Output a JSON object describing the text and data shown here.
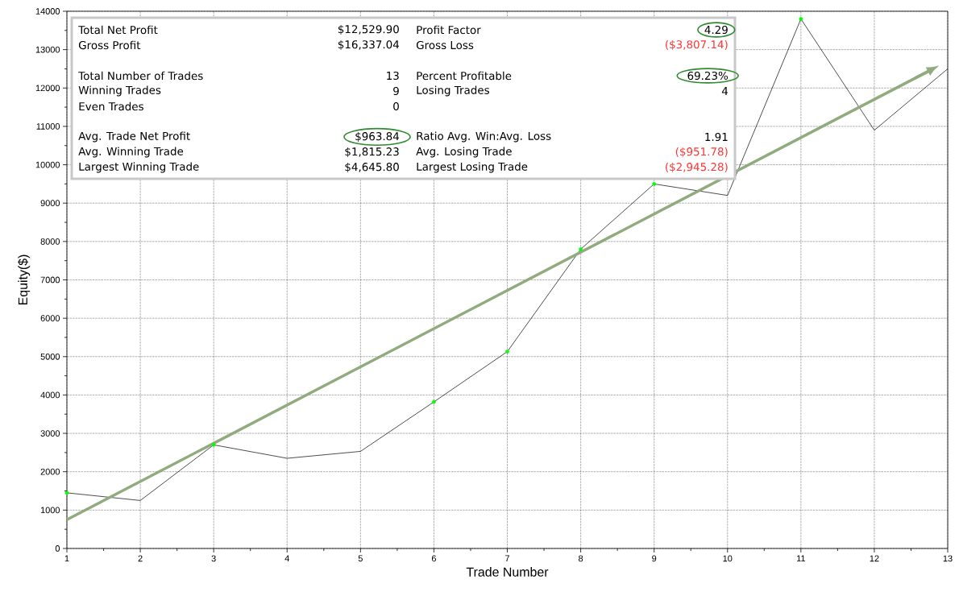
{
  "chart_data": {
    "type": "line",
    "xlabel": "Trade Number",
    "ylabel": "Equity($)",
    "x": [
      1,
      2,
      3,
      4,
      5,
      6,
      7,
      8,
      9,
      10,
      11,
      12,
      13
    ],
    "series": [
      {
        "color": "#000000",
        "marker": "none",
        "values": [
          1450,
          1250,
          2700,
          2350,
          2530,
          3820,
          5130,
          7800,
          9500,
          9200,
          13800,
          10900,
          12500
        ]
      },
      {
        "type": "scatter",
        "color": "#00ff00",
        "marker": "circle",
        "x": [
          1,
          3,
          6,
          7,
          8,
          9,
          11
        ],
        "values": [
          1450,
          2700,
          3820,
          5130,
          7800,
          9500,
          13800
        ]
      },
      {
        "type": "line",
        "color": "#90ab7e",
        "marker": "none",
        "x": [
          1,
          12.75
        ],
        "values": [
          750,
          12450
        ]
      }
    ],
    "xlim": [
      1,
      13
    ],
    "ylim": [
      0,
      14000
    ],
    "xticks": [
      1,
      2,
      3,
      4,
      5,
      6,
      7,
      8,
      9,
      10,
      11,
      12,
      13
    ],
    "yticks": [
      0,
      1000,
      2000,
      3000,
      4000,
      5000,
      6000,
      7000,
      8000,
      9000,
      10000,
      11000,
      12000,
      13000,
      14000
    ],
    "grid": true,
    "annotations": [
      "Total Net Profit",
      "$12,529.90",
      "Profit Factor",
      "4.29",
      "Gross Profit",
      "$16,337.04",
      "Gross Loss",
      "($3,807.14)",
      "Total Number of Trades",
      "13",
      "Percent Profitable",
      "69.23%",
      "Winning Trades",
      "9",
      "Losing Trades",
      "4",
      "Even Trades",
      "0",
      "Avg. Trade Net Profit",
      "$963.84",
      "Ratio Avg. Win:Avg. Loss",
      "1.91",
      "Avg. Winning Trade",
      "$1,815.23",
      "Avg. Losing Trade",
      "($951.78)",
      "Largest Winning Trade",
      "$4,645.80",
      "Largest Losing Trade",
      "($2,945.28)"
    ]
  }
}
